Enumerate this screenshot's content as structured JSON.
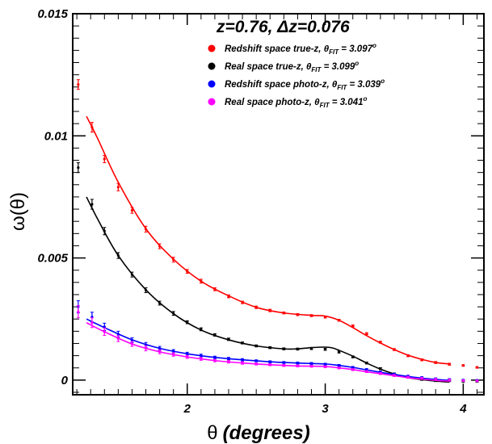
{
  "chart_data": {
    "type": "line",
    "title": "z=0.76, Δz=0.076",
    "xlabel_symbol": "θ",
    "xlabel_text": "(degrees)",
    "ylabel": "ω(θ)",
    "xlim": [
      1.17,
      4.15
    ],
    "ylim": [
      -0.0006,
      0.015
    ],
    "xticks": [
      {
        "value": 2,
        "label": "2"
      },
      {
        "value": 3,
        "label": "3"
      },
      {
        "value": 4,
        "label": "4"
      }
    ],
    "yticks": [
      {
        "value": 0,
        "label": "0"
      },
      {
        "value": 0.005,
        "label": "0.005"
      },
      {
        "value": 0.01,
        "label": "0.01"
      },
      {
        "value": 0.015,
        "label": "0.015"
      }
    ],
    "grid": false,
    "legend_position": "top-right",
    "series": [
      {
        "name_main": "Redshift space true-z, θ",
        "name_sub": "FIT",
        "name_value": " = 3.097",
        "name_sup": "o",
        "color": "#ff0000",
        "points": [
          {
            "x": 1.21,
            "y": 0.0121,
            "err": 0.0002
          },
          {
            "x": 1.31,
            "y": 0.01035,
            "err": 0.0002
          },
          {
            "x": 1.4,
            "y": 0.00905,
            "err": 0.00015
          },
          {
            "x": 1.5,
            "y": 0.0079,
            "err": 0.00015
          },
          {
            "x": 1.6,
            "y": 0.00695,
            "err": 0.00012
          },
          {
            "x": 1.7,
            "y": 0.00618,
            "err": 0.00012
          },
          {
            "x": 1.8,
            "y": 0.00548,
            "err": 0.0001
          },
          {
            "x": 1.9,
            "y": 0.00493,
            "err": 0.0001
          },
          {
            "x": 2.0,
            "y": 0.00445,
            "err": 8e-05
          },
          {
            "x": 2.1,
            "y": 0.00405,
            "err": 8e-05
          },
          {
            "x": 2.2,
            "y": 0.00372,
            "err": 6e-05
          },
          {
            "x": 2.3,
            "y": 0.00343,
            "err": 6e-05
          },
          {
            "x": 2.4,
            "y": 0.00318,
            "err": 5e-05
          },
          {
            "x": 2.5,
            "y": 0.00298,
            "err": 5e-05
          },
          {
            "x": 2.6,
            "y": 0.00285,
            "err": 5e-05
          },
          {
            "x": 2.7,
            "y": 0.00275,
            "err": 4e-05
          },
          {
            "x": 2.8,
            "y": 0.00268,
            "err": 4e-05
          },
          {
            "x": 2.9,
            "y": 0.00264,
            "err": 4e-05
          },
          {
            "x": 3.0,
            "y": 0.00258,
            "err": 4e-05
          },
          {
            "x": 3.1,
            "y": 0.00245,
            "err": 4e-05
          },
          {
            "x": 3.2,
            "y": 0.00222,
            "err": 4e-05
          },
          {
            "x": 3.3,
            "y": 0.0019,
            "err": 4e-05
          },
          {
            "x": 3.4,
            "y": 0.00155,
            "err": 4e-05
          },
          {
            "x": 3.5,
            "y": 0.00125,
            "err": 4e-05
          },
          {
            "x": 3.6,
            "y": 0.001,
            "err": 4e-05
          },
          {
            "x": 3.7,
            "y": 0.00083,
            "err": 4e-05
          },
          {
            "x": 3.8,
            "y": 0.00072,
            "err": 4e-05
          },
          {
            "x": 3.9,
            "y": 0.00065,
            "err": 4e-05
          },
          {
            "x": 4.0,
            "y": 0.0006,
            "err": 3e-05
          },
          {
            "x": 4.1,
            "y": 0.00052,
            "err": 3e-05
          }
        ],
        "fit": [
          [
            1.27,
            0.0108
          ],
          [
            1.35,
            0.0099
          ],
          [
            1.5,
            0.0081
          ],
          [
            1.7,
            0.0062
          ],
          [
            1.9,
            0.00495
          ],
          [
            2.1,
            0.00405
          ],
          [
            2.3,
            0.00345
          ],
          [
            2.5,
            0.00298
          ],
          [
            2.7,
            0.00275
          ],
          [
            2.9,
            0.00265
          ],
          [
            3.0,
            0.00262
          ],
          [
            3.1,
            0.00245
          ],
          [
            3.2,
            0.00215
          ],
          [
            3.3,
            0.00182
          ],
          [
            3.4,
            0.00152
          ],
          [
            3.5,
            0.00125
          ],
          [
            3.6,
            0.00102
          ],
          [
            3.7,
            0.00085
          ],
          [
            3.8,
            0.00072
          ],
          [
            3.9,
            0.00066
          ]
        ]
      },
      {
        "name_main": "Real space true-z, θ",
        "name_sub": "FIT",
        "name_value": " = 3.099",
        "name_sup": "o",
        "color": "#000000",
        "points": [
          {
            "x": 1.21,
            "y": 0.0087,
            "err": 0.0002
          },
          {
            "x": 1.31,
            "y": 0.0072,
            "err": 0.0002
          },
          {
            "x": 1.4,
            "y": 0.0061,
            "err": 0.00015
          },
          {
            "x": 1.5,
            "y": 0.0051,
            "err": 0.00012
          },
          {
            "x": 1.6,
            "y": 0.00432,
            "err": 0.0001
          },
          {
            "x": 1.7,
            "y": 0.00368,
            "err": 0.0001
          },
          {
            "x": 1.8,
            "y": 0.00315,
            "err": 8e-05
          },
          {
            "x": 1.9,
            "y": 0.00273,
            "err": 8e-05
          },
          {
            "x": 2.0,
            "y": 0.00237,
            "err": 6e-05
          },
          {
            "x": 2.1,
            "y": 0.00208,
            "err": 6e-05
          },
          {
            "x": 2.2,
            "y": 0.00185,
            "err": 5e-05
          },
          {
            "x": 2.3,
            "y": 0.00167,
            "err": 5e-05
          },
          {
            "x": 2.4,
            "y": 0.00152,
            "err": 4e-05
          },
          {
            "x": 2.5,
            "y": 0.0014,
            "err": 4e-05
          },
          {
            "x": 2.6,
            "y": 0.00133,
            "err": 4e-05
          },
          {
            "x": 2.7,
            "y": 0.00128,
            "err": 4e-05
          },
          {
            "x": 2.8,
            "y": 0.00127,
            "err": 4e-05
          },
          {
            "x": 2.9,
            "y": 0.00129,
            "err": 4e-05
          },
          {
            "x": 3.0,
            "y": 0.00126,
            "err": 4e-05
          },
          {
            "x": 3.1,
            "y": 0.00115,
            "err": 4e-05
          },
          {
            "x": 3.2,
            "y": 0.00095,
            "err": 4e-05
          },
          {
            "x": 3.3,
            "y": 0.0007,
            "err": 4e-05
          },
          {
            "x": 3.4,
            "y": 0.00047,
            "err": 4e-05
          },
          {
            "x": 3.5,
            "y": 0.00025,
            "err": 4e-05
          },
          {
            "x": 3.6,
            "y": 0.00012,
            "err": 4e-05
          },
          {
            "x": 3.7,
            "y": 3e-05,
            "err": 4e-05
          },
          {
            "x": 3.8,
            "y": -2e-05,
            "err": 4e-05
          },
          {
            "x": 3.9,
            "y": -2e-05,
            "err": 4e-05
          },
          {
            "x": 4.0,
            "y": -5e-05,
            "err": 3e-05
          },
          {
            "x": 4.1,
            "y": -5e-05,
            "err": 3e-05
          }
        ],
        "fit": [
          [
            1.27,
            0.0075
          ],
          [
            1.35,
            0.0066
          ],
          [
            1.5,
            0.0051
          ],
          [
            1.7,
            0.0037
          ],
          [
            1.9,
            0.00272
          ],
          [
            2.1,
            0.00205
          ],
          [
            2.3,
            0.00165
          ],
          [
            2.5,
            0.0014
          ],
          [
            2.7,
            0.00128
          ],
          [
            2.8,
            0.00128
          ],
          [
            2.9,
            0.00133
          ],
          [
            3.0,
            0.00135
          ],
          [
            3.05,
            0.00132
          ],
          [
            3.1,
            0.00122
          ],
          [
            3.2,
            0.00098
          ],
          [
            3.3,
            0.0007
          ],
          [
            3.4,
            0.00045
          ],
          [
            3.5,
            0.00025
          ],
          [
            3.6,
            0.0001
          ],
          [
            3.7,
            2e-05
          ],
          [
            3.8,
            -4e-05
          ],
          [
            3.9,
            -8e-05
          ]
        ]
      },
      {
        "name_main": "Redshift space photo-z, θ",
        "name_sub": "FIT",
        "name_value": " = 3.039",
        "name_sup": "o",
        "color": "#0000ff",
        "points": [
          {
            "x": 1.21,
            "y": 0.003,
            "err": 0.00025
          },
          {
            "x": 1.31,
            "y": 0.00258,
            "err": 0.0002
          },
          {
            "x": 1.4,
            "y": 0.00218,
            "err": 0.00015
          },
          {
            "x": 1.5,
            "y": 0.00188,
            "err": 0.00012
          },
          {
            "x": 1.6,
            "y": 0.00163,
            "err": 0.0001
          },
          {
            "x": 1.7,
            "y": 0.00144,
            "err": 0.0001
          },
          {
            "x": 1.8,
            "y": 0.0013,
            "err": 8e-05
          },
          {
            "x": 1.9,
            "y": 0.00118,
            "err": 7e-05
          },
          {
            "x": 2.0,
            "y": 0.00108,
            "err": 6e-05
          },
          {
            "x": 2.1,
            "y": 0.001,
            "err": 6e-05
          },
          {
            "x": 2.2,
            "y": 0.00093,
            "err": 5e-05
          },
          {
            "x": 2.3,
            "y": 0.00088,
            "err": 5e-05
          },
          {
            "x": 2.4,
            "y": 0.00083,
            "err": 5e-05
          },
          {
            "x": 2.5,
            "y": 0.00079,
            "err": 4e-05
          },
          {
            "x": 2.6,
            "y": 0.00075,
            "err": 4e-05
          },
          {
            "x": 2.7,
            "y": 0.00072,
            "err": 4e-05
          },
          {
            "x": 2.8,
            "y": 0.0007,
            "err": 4e-05
          },
          {
            "x": 2.9,
            "y": 0.00068,
            "err": 4e-05
          },
          {
            "x": 3.0,
            "y": 0.00065,
            "err": 4e-05
          },
          {
            "x": 3.1,
            "y": 0.0006,
            "err": 4e-05
          },
          {
            "x": 3.2,
            "y": 0.00052,
            "err": 4e-05
          },
          {
            "x": 3.3,
            "y": 0.00043,
            "err": 4e-05
          },
          {
            "x": 3.4,
            "y": 0.00033,
            "err": 4e-05
          },
          {
            "x": 3.5,
            "y": 0.00024,
            "err": 4e-05
          },
          {
            "x": 3.6,
            "y": 0.00016,
            "err": 4e-05
          },
          {
            "x": 3.7,
            "y": 0.0001,
            "err": 4e-05
          },
          {
            "x": 3.8,
            "y": 5e-05,
            "err": 4e-05
          },
          {
            "x": 3.9,
            "y": 2e-05,
            "err": 4e-05
          },
          {
            "x": 4.0,
            "y": 0.0,
            "err": 3e-05
          },
          {
            "x": 4.1,
            "y": -1e-05,
            "err": 3e-05
          }
        ],
        "fit": [
          [
            1.27,
            0.0025
          ],
          [
            1.4,
            0.00215
          ],
          [
            1.6,
            0.00165
          ],
          [
            1.8,
            0.0013
          ],
          [
            2.0,
            0.00108
          ],
          [
            2.2,
            0.00093
          ],
          [
            2.4,
            0.00083
          ],
          [
            2.6,
            0.00075
          ],
          [
            2.8,
            0.0007
          ],
          [
            3.0,
            0.00066
          ],
          [
            3.1,
            0.0006
          ],
          [
            3.2,
            0.00052
          ],
          [
            3.3,
            0.00042
          ],
          [
            3.4,
            0.00032
          ],
          [
            3.5,
            0.00023
          ],
          [
            3.6,
            0.00015
          ],
          [
            3.7,
            8e-05
          ],
          [
            3.8,
            3e-05
          ],
          [
            3.9,
            -1e-05
          ]
        ]
      },
      {
        "name_main": "Real space photo-z, θ",
        "name_sub": "FIT",
        "name_value": " = 3.041",
        "name_sup": "o",
        "color": "#ff00ff",
        "points": [
          {
            "x": 1.21,
            "y": 0.0028,
            "err": 0.00025
          },
          {
            "x": 1.31,
            "y": 0.00235,
            "err": 0.0002
          },
          {
            "x": 1.4,
            "y": 0.00198,
            "err": 0.00015
          },
          {
            "x": 1.5,
            "y": 0.0017,
            "err": 0.00012
          },
          {
            "x": 1.6,
            "y": 0.00148,
            "err": 0.0001
          },
          {
            "x": 1.7,
            "y": 0.0013,
            "err": 0.0001
          },
          {
            "x": 1.8,
            "y": 0.00116,
            "err": 8e-05
          },
          {
            "x": 1.9,
            "y": 0.00105,
            "err": 7e-05
          },
          {
            "x": 2.0,
            "y": 0.00095,
            "err": 6e-05
          },
          {
            "x": 2.1,
            "y": 0.00087,
            "err": 6e-05
          },
          {
            "x": 2.2,
            "y": 0.0008,
            "err": 5e-05
          },
          {
            "x": 2.3,
            "y": 0.00075,
            "err": 5e-05
          },
          {
            "x": 2.4,
            "y": 0.0007,
            "err": 5e-05
          },
          {
            "x": 2.5,
            "y": 0.00066,
            "err": 4e-05
          },
          {
            "x": 2.6,
            "y": 0.00063,
            "err": 4e-05
          },
          {
            "x": 2.7,
            "y": 0.0006,
            "err": 4e-05
          },
          {
            "x": 2.8,
            "y": 0.00058,
            "err": 4e-05
          },
          {
            "x": 2.9,
            "y": 0.00057,
            "err": 4e-05
          },
          {
            "x": 3.0,
            "y": 0.00055,
            "err": 4e-05
          },
          {
            "x": 3.1,
            "y": 0.0005,
            "err": 4e-05
          },
          {
            "x": 3.2,
            "y": 0.00043,
            "err": 4e-05
          },
          {
            "x": 3.3,
            "y": 0.00035,
            "err": 4e-05
          },
          {
            "x": 3.4,
            "y": 0.00027,
            "err": 4e-05
          },
          {
            "x": 3.5,
            "y": 0.00019,
            "err": 4e-05
          },
          {
            "x": 3.6,
            "y": 0.00012,
            "err": 4e-05
          },
          {
            "x": 3.7,
            "y": 7e-05,
            "err": 4e-05
          },
          {
            "x": 3.8,
            "y": 3e-05,
            "err": 4e-05
          },
          {
            "x": 3.9,
            "y": 0.0,
            "err": 4e-05
          },
          {
            "x": 4.0,
            "y": -2e-05,
            "err": 3e-05
          },
          {
            "x": 4.1,
            "y": -3e-05,
            "err": 3e-05
          }
        ],
        "fit": [
          [
            1.27,
            0.00235
          ],
          [
            1.4,
            0.00198
          ],
          [
            1.6,
            0.00148
          ],
          [
            1.8,
            0.00116
          ],
          [
            2.0,
            0.00095
          ],
          [
            2.2,
            0.0008
          ],
          [
            2.4,
            0.0007
          ],
          [
            2.6,
            0.00063
          ],
          [
            2.8,
            0.00058
          ],
          [
            3.0,
            0.00056
          ],
          [
            3.1,
            0.0005
          ],
          [
            3.2,
            0.00043
          ],
          [
            3.3,
            0.00034
          ],
          [
            3.4,
            0.00026
          ],
          [
            3.5,
            0.00018
          ],
          [
            3.6,
            0.0001
          ],
          [
            3.7,
            4e-05
          ],
          [
            3.8,
            -1e-05
          ],
          [
            3.9,
            -4e-05
          ]
        ]
      }
    ]
  }
}
